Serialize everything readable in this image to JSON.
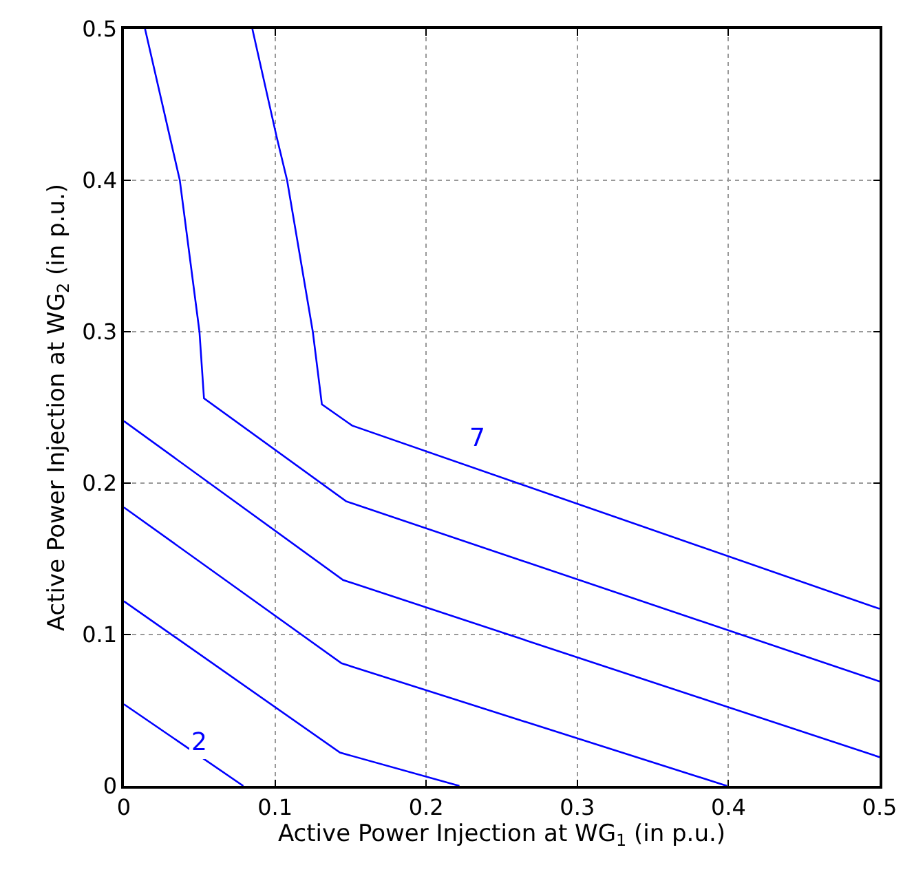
{
  "chart_data": {
    "type": "line",
    "xlabel": "Active Power Injection at WG$_{1}$ (in p.u.)",
    "ylabel": "Active Power Injection at WG$_{2}$ (in p.u.)",
    "xlim": [
      0,
      0.5
    ],
    "ylim": [
      0,
      0.5
    ],
    "xticks": [
      0,
      0.1,
      0.2,
      0.3,
      0.4,
      0.5
    ],
    "yticks": [
      0,
      0.1,
      0.2,
      0.3,
      0.4,
      0.5
    ],
    "grid": true,
    "marker": "none",
    "line_style": "solid",
    "series": [
      {
        "color": "#0000ff",
        "x": [
          0,
          0.079
        ],
        "values": [
          0.054,
          0
        ]
      },
      {
        "color": "#0000ff",
        "x": [
          0,
          0.143,
          0.222
        ],
        "values": [
          0.122,
          0.022,
          0
        ]
      },
      {
        "color": "#0000ff",
        "x": [
          0,
          0.144,
          0.399
        ],
        "values": [
          0.184,
          0.081,
          0
        ]
      },
      {
        "color": "#0000ff",
        "x": [
          0,
          0.145,
          0.5
        ],
        "values": [
          0.241,
          0.136,
          0.019
        ]
      },
      {
        "color": "#0000ff",
        "x": [
          0.014,
          0.037,
          0.05,
          0.053,
          0.147,
          0.5
        ],
        "values": [
          0.5,
          0.4,
          0.3,
          0.256,
          0.188,
          0.069
        ]
      },
      {
        "color": "#0000ff",
        "x": [
          0.085,
          0.101,
          0.108,
          0.125,
          0.131,
          0.151,
          0.5
        ],
        "values": [
          0.5,
          0.429,
          0.4,
          0.3,
          0.252,
          0.238,
          0.117
        ]
      }
    ],
    "annotations": [
      {
        "text": "2",
        "x": 0.05,
        "y": 0.029
      },
      {
        "text": "7",
        "x": 0.234,
        "y": 0.23
      }
    ]
  }
}
